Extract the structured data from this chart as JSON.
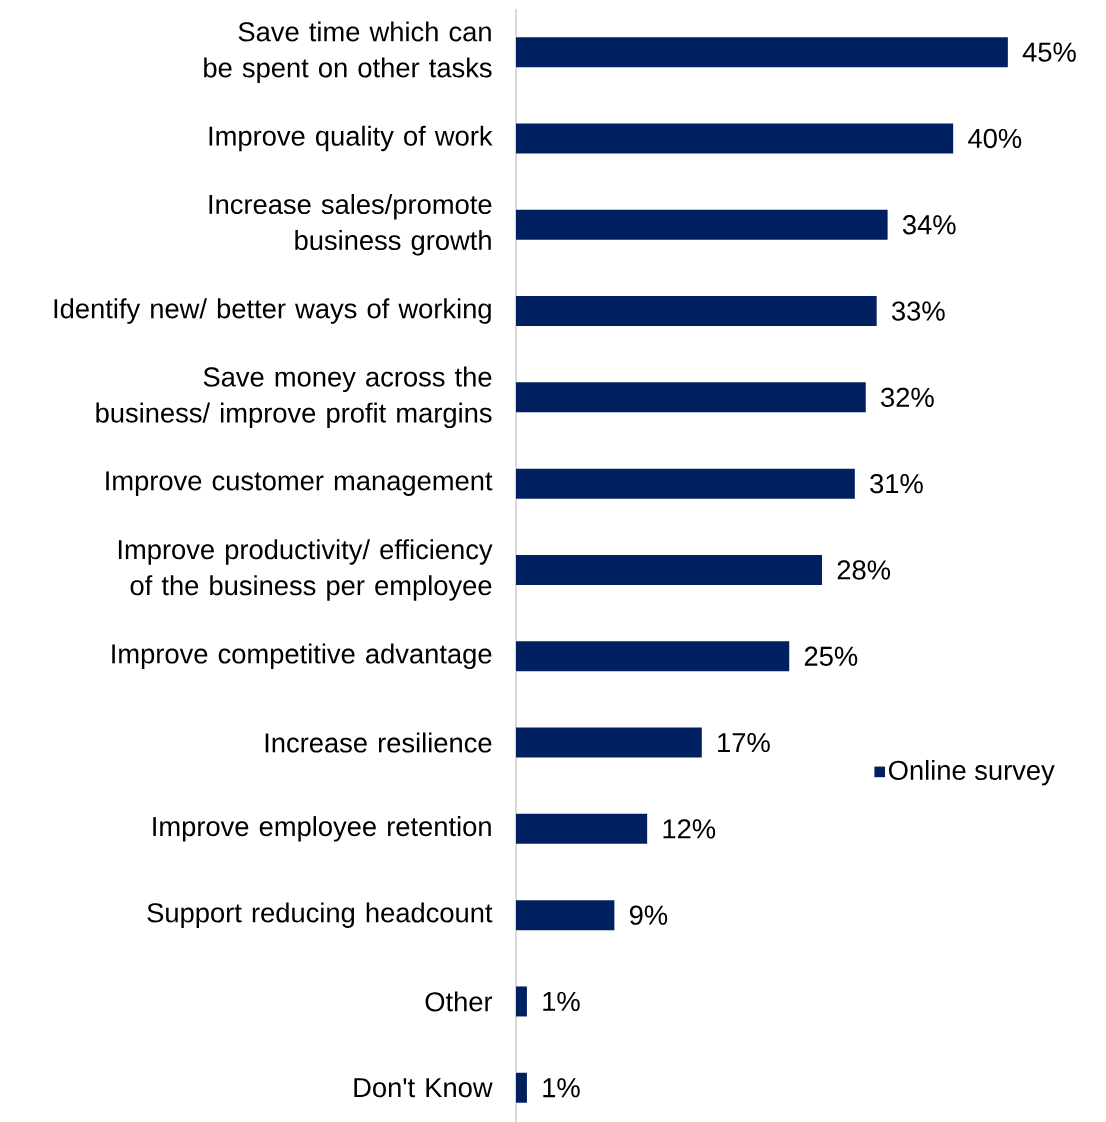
{
  "chart_data": {
    "type": "bar",
    "orientation": "horizontal",
    "categories": [
      "Save time which can be spent on other tasks",
      "Improve quality of work",
      "Increase sales/promote business growth",
      "Identify new/ better ways of working",
      "Save money across the business/ improve profit margins",
      "Improve customer management",
      "Improve productivity/ efficiency of the business per employee",
      "Improve competitive advantage",
      "Increase resilience",
      "Improve employee retention",
      "Support reducing headcount",
      "Other",
      "Don't Know"
    ],
    "series": [
      {
        "name": "Online survey",
        "color": "#002060",
        "values": [
          45,
          40,
          34,
          33,
          32,
          31,
          28,
          25,
          17,
          12,
          9,
          1,
          1
        ],
        "value_labels": [
          "45%",
          "40%",
          "34%",
          "33%",
          "32%",
          "31%",
          "28%",
          "25%",
          "17%",
          "12%",
          "9%",
          "1%",
          "1%"
        ]
      }
    ],
    "legend": "right"
  }
}
